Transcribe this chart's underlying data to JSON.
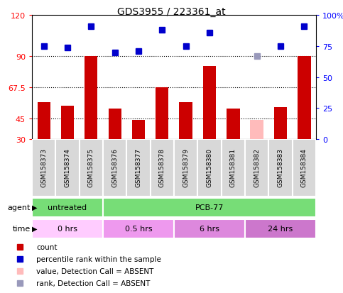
{
  "title": "GDS3955 / 223361_at",
  "samples": [
    "GSM158373",
    "GSM158374",
    "GSM158375",
    "GSM158376",
    "GSM158377",
    "GSM158378",
    "GSM158379",
    "GSM158380",
    "GSM158381",
    "GSM158382",
    "GSM158383",
    "GSM158384"
  ],
  "count_values": [
    57,
    54,
    90,
    52,
    44,
    67.5,
    57,
    83,
    52,
    null,
    53,
    90
  ],
  "count_absent": [
    null,
    null,
    null,
    null,
    null,
    null,
    null,
    null,
    null,
    44,
    null,
    null
  ],
  "rank_values": [
    75,
    74,
    91,
    70,
    71,
    88,
    75,
    86,
    null,
    null,
    75,
    91
  ],
  "rank_absent": [
    null,
    null,
    null,
    null,
    null,
    null,
    null,
    null,
    null,
    67,
    null,
    null
  ],
  "count_color": "#cc0000",
  "count_absent_color": "#ffbbbb",
  "rank_color": "#0000cc",
  "rank_absent_color": "#9999bb",
  "ylim_left": [
    30,
    120
  ],
  "ylim_right": [
    0,
    100
  ],
  "yticks_left": [
    30,
    45,
    67.5,
    90,
    120
  ],
  "yticks_right": [
    0,
    25,
    50,
    75,
    100
  ],
  "hlines": [
    45,
    67.5,
    90
  ],
  "agent_groups": [
    {
      "label": "untreated",
      "start": 0,
      "end": 3,
      "color": "#77dd77"
    },
    {
      "label": "PCB-77",
      "start": 3,
      "end": 12,
      "color": "#77dd77"
    }
  ],
  "time_groups": [
    {
      "label": "0 hrs",
      "start": 0,
      "end": 3,
      "color": "#ffccff"
    },
    {
      "label": "0.5 hrs",
      "start": 3,
      "end": 6,
      "color": "#ee99ee"
    },
    {
      "label": "6 hrs",
      "start": 6,
      "end": 9,
      "color": "#dd88dd"
    },
    {
      "label": "24 hrs",
      "start": 9,
      "end": 12,
      "color": "#cc77cc"
    }
  ],
  "legend_items": [
    {
      "label": "count",
      "color": "#cc0000"
    },
    {
      "label": "percentile rank within the sample",
      "color": "#0000cc"
    },
    {
      "label": "value, Detection Call = ABSENT",
      "color": "#ffbbbb"
    },
    {
      "label": "rank, Detection Call = ABSENT",
      "color": "#9999bb"
    }
  ],
  "bar_width": 0.55,
  "marker_size": 6
}
